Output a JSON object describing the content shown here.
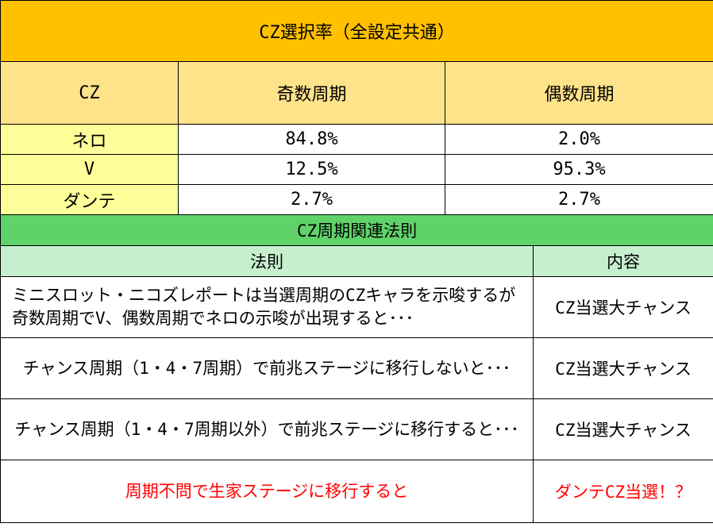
{
  "selection": {
    "title": "CZ選択率（全設定共通）",
    "headers": [
      "CZ",
      "奇数周期",
      "偶数周期"
    ],
    "rows": [
      {
        "cz": "ネロ",
        "odd": "84.8%",
        "even": "2.0%"
      },
      {
        "cz": "V",
        "odd": "12.5%",
        "even": "95.3%"
      },
      {
        "cz": "ダンテ",
        "odd": "2.7%",
        "even": "2.7%"
      }
    ]
  },
  "rules": {
    "title": "CZ周期関連法則",
    "headers": [
      "法則",
      "内容"
    ],
    "rows": [
      {
        "rule": "ミニスロット・ニコズレポートは当選周期のCZキャラを示唆するが奇数周期でV、偶数周期でネロの示唆が出現すると･･･",
        "content": "CZ当選大チャンス"
      },
      {
        "rule": "チャンス周期（1・4・7周期）で前兆ステージに移行しないと･･･",
        "content": "CZ当選大チャンス"
      },
      {
        "rule": "チャンス周期（1・4・7周期以外）で前兆ステージに移行すると･･･",
        "content": "CZ当選大チャンス"
      },
      {
        "rule": "周期不問で生家ステージに移行すると",
        "content": "ダンテCZ当選！？"
      }
    ]
  },
  "colors": {
    "title_bg": "#ffc000",
    "header_bg": "#ffe38a",
    "label_bg": "#ffff99",
    "rules_title_bg": "#5fd36a",
    "rules_header_bg": "#c6efce",
    "highlight_text": "#ff0000"
  }
}
